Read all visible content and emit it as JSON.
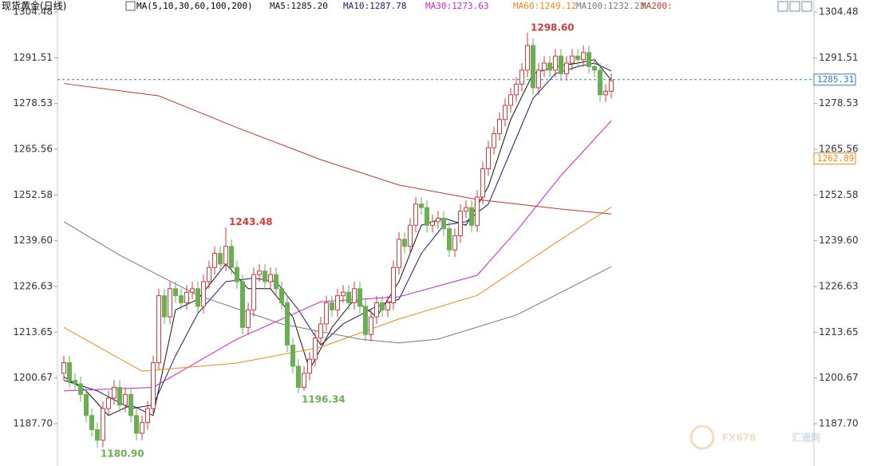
{
  "chart_data": {
    "type": "candlestick",
    "title": "现货黄金(日线)",
    "indicator": "MA(5,10,30,60,100,200)",
    "ylim": [
      1176.6,
      1307.9
    ],
    "yticks": [
      1304.48,
      1291.51,
      1278.53,
      1265.56,
      1252.58,
      {
        "value": 1239.6,
        "label": "1239.60"
      },
      1226.63,
      1213.65,
      1200.67,
      {
        "value": 1187.7,
        "label": "1187.70"
      }
    ],
    "up_color": "#d43a3a",
    "down_color": "#6aaf52",
    "open": [
      1202,
      1205,
      1200,
      1199,
      1196,
      1190,
      1186,
      1183,
      1192,
      1195,
      1198,
      1193,
      1196,
      1190,
      1185,
      1188,
      1192,
      1205,
      1224,
      1218,
      1226,
      1224,
      1222,
      1225,
      1226,
      1221,
      1228,
      1232,
      1236,
      1233,
      1238,
      1232,
      1228,
      1215,
      1220,
      1230,
      1231,
      1228,
      1230,
      1226,
      1222,
      1210,
      1204,
      1198,
      1202,
      1206,
      1212,
      1216,
      1222,
      1220,
      1224,
      1225,
      1222,
      1226,
      1221,
      1213,
      1218,
      1222,
      1220,
      1222,
      1232,
      1240,
      1238,
      1244,
      1250,
      1249,
      1244,
      1245,
      1246,
      1243,
      1237,
      1241,
      1248,
      1249,
      1244,
      1252,
      1260,
      1266,
      1270,
      1274,
      1278,
      1281,
      1284,
      1288,
      1295,
      1283,
      1288,
      1290,
      1288,
      1292,
      1287,
      1290,
      1292,
      1291,
      1293,
      1289,
      1288,
      1281,
      1282
    ],
    "high": [
      1207,
      1207,
      1202,
      1201,
      1198,
      1192,
      1188,
      1194,
      1197,
      1200,
      1200,
      1198,
      1198,
      1192,
      1190,
      1194,
      1207,
      1226,
      1226,
      1228,
      1228,
      1226,
      1227,
      1228,
      1228,
      1230,
      1234,
      1238,
      1238,
      1243.48,
      1240,
      1234,
      1230,
      1222,
      1232,
      1233,
      1233,
      1232,
      1232,
      1228,
      1224,
      1212,
      1206,
      1204,
      1208,
      1214,
      1218,
      1224,
      1224,
      1226,
      1227,
      1227,
      1228,
      1228,
      1223,
      1220,
      1224,
      1224,
      1224,
      1234,
      1242,
      1242,
      1246,
      1252,
      1252,
      1251,
      1247,
      1248,
      1248,
      1245,
      1243,
      1250,
      1251,
      1251,
      1254,
      1262,
      1268,
      1272,
      1276,
      1280,
      1283,
      1286,
      1290,
      1298.6,
      1297,
      1290,
      1292,
      1292,
      1294,
      1294,
      1292,
      1294,
      1294,
      1295,
      1295,
      1291,
      1290,
      1284,
      1287
    ],
    "low": [
      1200,
      1198,
      1197,
      1194,
      1188,
      1184,
      1180.9,
      1181,
      1190,
      1193,
      1191,
      1191,
      1188,
      1183,
      1183,
      1186,
      1190,
      1203,
      1216,
      1216,
      1222,
      1220,
      1220,
      1223,
      1219,
      1219,
      1226,
      1230,
      1231,
      1231,
      1230,
      1226,
      1213,
      1213,
      1218,
      1228,
      1226,
      1226,
      1224,
      1220,
      1208,
      1202,
      1196.34,
      1197,
      1200,
      1204,
      1210,
      1214,
      1218,
      1218,
      1222,
      1220,
      1220,
      1219,
      1211,
      1211,
      1216,
      1218,
      1218,
      1220,
      1230,
      1236,
      1236,
      1242,
      1247,
      1242,
      1242,
      1243,
      1241,
      1235,
      1235,
      1239,
      1246,
      1242,
      1242,
      1250,
      1258,
      1264,
      1268,
      1272,
      1276,
      1279,
      1282,
      1286,
      1281,
      1281,
      1286,
      1286,
      1286,
      1285,
      1285,
      1288,
      1289,
      1289,
      1287,
      1286,
      1279,
      1279,
      1280
    ],
    "close": [
      1205,
      1200,
      1199,
      1196,
      1190,
      1186,
      1183,
      1192,
      1195,
      1198,
      1193,
      1196,
      1190,
      1185,
      1188,
      1192,
      1205,
      1224,
      1218,
      1226,
      1224,
      1222,
      1225,
      1226,
      1221,
      1228,
      1232,
      1236,
      1233,
      1238,
      1232,
      1228,
      1215,
      1220,
      1230,
      1231,
      1228,
      1230,
      1226,
      1222,
      1210,
      1204,
      1198,
      1202,
      1206,
      1212,
      1216,
      1222,
      1220,
      1224,
      1225,
      1222,
      1226,
      1221,
      1213,
      1218,
      1222,
      1220,
      1222,
      1232,
      1240,
      1238,
      1244,
      1250,
      1249,
      1244,
      1245,
      1246,
      1243,
      1237,
      1241,
      1248,
      1249,
      1244,
      1252,
      1260,
      1266,
      1270,
      1274,
      1278,
      1281,
      1284,
      1288,
      1295,
      1283,
      1288,
      1290,
      1288,
      1292,
      1287,
      1290,
      1292,
      1291,
      1293,
      1289,
      1288,
      1281,
      1282,
      1285
    ],
    "series": [
      {
        "name": "MA5:1285.20",
        "color": "#111111",
        "x": [
          0,
          4,
          8,
          12,
          16,
          20,
          24,
          29,
          33,
          37,
          41,
          44,
          48,
          52,
          56,
          60,
          64,
          68,
          72,
          76,
          80,
          84,
          88,
          92,
          95,
          98
        ],
        "values": [
          1201,
          1197,
          1190,
          1193,
          1190,
          1220,
          1223,
          1233,
          1226,
          1226,
          1218,
          1203,
          1215,
          1223,
          1218,
          1228,
          1244,
          1246,
          1244,
          1255,
          1274,
          1287,
          1289,
          1290,
          1291,
          1285.2
        ]
      },
      {
        "name": "MA10:1287.78",
        "color": "#1a1a7a",
        "x": [
          0,
          6,
          12,
          16,
          20,
          24,
          29,
          34,
          38,
          42,
          46,
          50,
          56,
          60,
          64,
          68,
          72,
          76,
          80,
          84,
          88,
          92,
          95,
          98
        ],
        "values": [
          1200,
          1197,
          1192,
          1193,
          1207,
          1219,
          1228,
          1229,
          1228,
          1220,
          1210,
          1216,
          1221,
          1223,
          1236,
          1244,
          1245,
          1250,
          1265,
          1280,
          1287,
          1289,
          1290,
          1287.78
        ]
      },
      {
        "name": "MA30:1273.63",
        "color": "#d21fd2",
        "x": [
          0,
          16,
          31,
          46,
          60,
          74,
          81,
          89,
          98
        ],
        "values": [
          1197,
          1198,
          1211.7,
          1222.3,
          1223.7,
          1229.8,
          1242.3,
          1258.1,
          1273.63
        ]
      },
      {
        "name": "MA60:1249.12",
        "color": "#f08a12",
        "x": [
          0,
          14,
          31,
          46,
          60,
          74,
          89,
          98
        ],
        "values": [
          1215,
          1202.6,
          1204.9,
          1209.4,
          1217.4,
          1224.1,
          1240,
          1249.12
        ]
      },
      {
        "name": "MA100:1232.23",
        "color": "#777777",
        "x": [
          0,
          10,
          24,
          39,
          53,
          60,
          67,
          81,
          98
        ],
        "values": [
          1245,
          1235.5,
          1224.1,
          1216,
          1211.7,
          1210.6,
          1211.7,
          1218.5,
          1232.23
        ]
      },
      {
        "name": "MA200:",
        "color": "#c0392b",
        "x": [
          0,
          17,
          31,
          46,
          60,
          74,
          89,
          98
        ],
        "values": [
          1284.2,
          1280.7,
          1271.7,
          1262.6,
          1255.4,
          1251.3,
          1248.6,
          1247.2
        ]
      }
    ],
    "price_line": 1285.31,
    "price_line_color": "#2f7fc4",
    "marker_value": 1262.89,
    "marker_color": "#f08a12",
    "annotations": [
      {
        "value": 1298.6,
        "label": "1298.60",
        "at": "high"
      },
      {
        "value": 1243.48,
        "label": "1243.48",
        "at": "high"
      },
      {
        "value": 1196.34,
        "label": "1196.34",
        "at": "low"
      },
      {
        "value": 1180.9,
        "label": "1180.90",
        "at": "low"
      }
    ],
    "watermark": [
      "FX678",
      "汇通网"
    ]
  }
}
